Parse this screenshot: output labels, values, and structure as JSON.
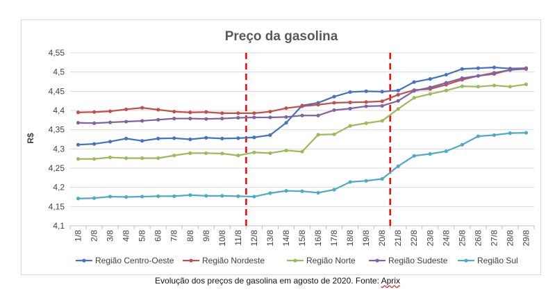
{
  "caption": {
    "text": "Evolução dos preços de gasolina em agosto de 2020. Fonte: ",
    "source": "Aprix"
  },
  "chart_data": {
    "type": "line",
    "title": "Preço da gasolina",
    "xlabel": "",
    "ylabel": "R$",
    "ylim": [
      4.1,
      4.55
    ],
    "yticks": [
      "4,1",
      "4,15",
      "4,2",
      "4,25",
      "4,3",
      "4,35",
      "4,4",
      "4,45",
      "4,5",
      "4,55"
    ],
    "grid": true,
    "legend": "bottom",
    "categories": [
      "1/8",
      "2/8",
      "3/8",
      "4/8",
      "5/8",
      "6/8",
      "7/8",
      "8/8",
      "9/8",
      "10/8",
      "11/8",
      "12/8",
      "13/8",
      "14/8",
      "15/8",
      "16/8",
      "17/8",
      "18/8",
      "19/8",
      "20/8",
      "21/8",
      "22/8",
      "23/8",
      "24/8",
      "25/8",
      "26/8",
      "27/8",
      "28/8",
      "29/8"
    ],
    "vlines": [
      "12/8",
      "21/8"
    ],
    "vline_color": "#ff0000",
    "series": [
      {
        "name": "Região Centro-Oeste",
        "color": "#4472c4",
        "values": [
          4.311,
          4.313,
          4.319,
          4.327,
          4.321,
          4.327,
          4.328,
          4.325,
          4.329,
          4.327,
          4.328,
          4.33,
          4.336,
          4.368,
          4.413,
          4.42,
          4.436,
          4.448,
          4.45,
          4.449,
          4.452,
          4.474,
          4.482,
          4.493,
          4.508,
          4.51,
          4.512,
          4.509,
          4.51
        ]
      },
      {
        "name": "Região Nordeste",
        "color": "#c0504d",
        "values": [
          4.395,
          4.396,
          4.398,
          4.403,
          4.407,
          4.402,
          4.397,
          4.395,
          4.396,
          4.393,
          4.393,
          4.393,
          4.397,
          4.406,
          4.411,
          4.415,
          4.42,
          4.421,
          4.422,
          4.424,
          4.441,
          4.453,
          4.456,
          4.467,
          4.48,
          4.49,
          4.495,
          4.506,
          4.508
        ]
      },
      {
        "name": "Região Norte",
        "color": "#9bbb59",
        "values": [
          4.274,
          4.274,
          4.278,
          4.276,
          4.276,
          4.276,
          4.283,
          4.289,
          4.289,
          4.288,
          4.283,
          4.291,
          4.289,
          4.296,
          4.293,
          4.337,
          4.338,
          4.36,
          4.367,
          4.373,
          4.404,
          4.433,
          4.443,
          4.452,
          4.463,
          4.462,
          4.465,
          4.462,
          4.468
        ]
      },
      {
        "name": "Região Sudeste",
        "color": "#8064a2",
        "values": [
          4.368,
          4.367,
          4.369,
          4.371,
          4.373,
          4.376,
          4.379,
          4.379,
          4.378,
          4.379,
          4.381,
          4.382,
          4.382,
          4.383,
          4.387,
          4.387,
          4.401,
          4.405,
          4.411,
          4.412,
          4.425,
          4.451,
          4.46,
          4.472,
          4.484,
          4.49,
          4.498,
          4.505,
          4.51
        ]
      },
      {
        "name": "Região Sul",
        "color": "#4bacc6",
        "values": [
          4.171,
          4.172,
          4.176,
          4.175,
          4.176,
          4.177,
          4.177,
          4.18,
          4.178,
          4.178,
          4.177,
          4.176,
          4.185,
          4.191,
          4.19,
          4.186,
          4.194,
          4.214,
          4.217,
          4.222,
          4.255,
          4.282,
          4.287,
          4.294,
          4.311,
          4.333,
          4.336,
          4.341,
          4.342
        ]
      }
    ]
  }
}
